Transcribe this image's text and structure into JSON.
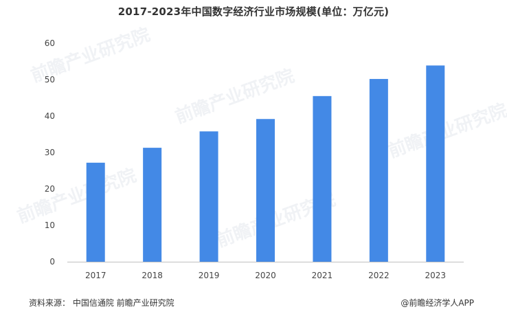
{
  "chart_data": {
    "type": "bar",
    "title": "2017-2023年中国数字经济行业市场规模(单位：万亿元)",
    "categories": [
      "2017",
      "2018",
      "2019",
      "2020",
      "2021",
      "2022",
      "2023"
    ],
    "series": [
      {
        "values": [
          27.2,
          31.3,
          35.8,
          39.2,
          45.5,
          50.2,
          53.9
        ]
      }
    ],
    "ylim": [
      0,
      60
    ],
    "yticks": [
      0,
      10,
      20,
      30,
      40,
      50,
      60
    ],
    "xlabel": "",
    "ylabel": "",
    "grid": false,
    "bar_color": "#4389e6",
    "axis_color": "#bfbfbf"
  },
  "footer": {
    "source": "资料来源：  中国信通院 前瞻产业研究院",
    "brand": "@前瞻经济学人APP"
  },
  "watermark_text": "前瞻产业研究院"
}
